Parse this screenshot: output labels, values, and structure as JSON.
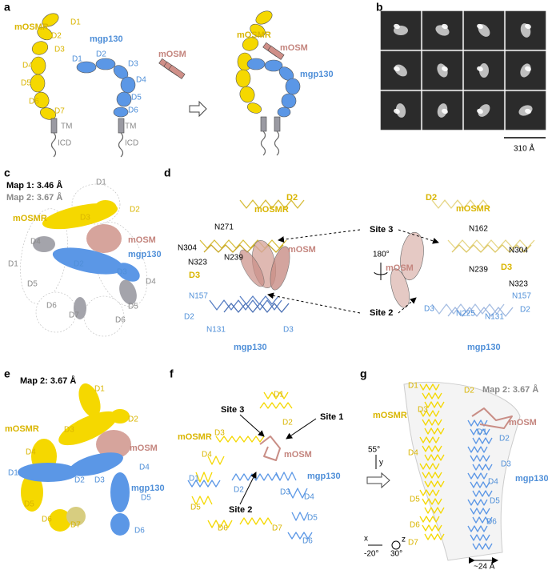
{
  "panels": [
    {
      "letter": "a",
      "labels": [
        "mOSMR",
        "D1",
        "D2",
        "D3",
        "D4",
        "D5",
        "D6",
        "D7",
        "TM",
        "ICD",
        "mgp130",
        "D1",
        "D2",
        "D3",
        "D4",
        "D5",
        "D6",
        "TM",
        "ICD",
        "mOSM",
        "mOSMR",
        "mOSM",
        "mgp130"
      ]
    },
    {
      "letter": "b",
      "labels": [
        "310 Å"
      ]
    },
    {
      "letter": "c",
      "labels": [
        "Map 1: 3.46 Å",
        "Map 2: 3.67 Å",
        "D1",
        "D2",
        "mOSMR",
        "D3",
        "mOSM",
        "D4",
        "D1",
        "mgp130",
        "D2",
        "D3",
        "D4",
        "D5",
        "D5",
        "D6",
        "D7",
        "D6"
      ]
    },
    {
      "letter": "d",
      "labels": [
        "D2",
        "mOSMR",
        "N271",
        "N304",
        "N323",
        "N239",
        "D3",
        "mOSM",
        "N157",
        "D2",
        "N131",
        "D3",
        "mgp130",
        "Site 3",
        "Site 2",
        "180°",
        "D2",
        "mOSMR",
        "N162",
        "N304",
        "mOSM",
        "N239",
        "D3",
        "N323",
        "N157",
        "D3",
        "N225",
        "N131",
        "D2",
        "mgp130"
      ]
    },
    {
      "letter": "e",
      "labels": [
        "Map 2: 3.67 Å",
        "D1",
        "D2",
        "mOSMR",
        "D3",
        "mOSM",
        "D4",
        "D1",
        "D2",
        "D3",
        "D4",
        "mgp130",
        "D5",
        "D5",
        "D6",
        "D7",
        "D6"
      ]
    },
    {
      "letter": "f",
      "labels": [
        "D1",
        "D2",
        "Site 3",
        "Site 1",
        "mOSMR",
        "D3",
        "mOSM",
        "D4",
        "D1",
        "D2",
        "D3",
        "mgp130",
        "D4",
        "Site 2",
        "D5",
        "D5",
        "D6",
        "D7",
        "D6"
      ]
    },
    {
      "letter": "g",
      "labels": [
        "D1",
        "D2",
        "Map 2: 3.67 Å",
        "mOSMR",
        "D3",
        "mOSM",
        "D1",
        "D2",
        "55°",
        "y",
        "D4",
        "D3",
        "D4",
        "mgp130",
        "D5",
        "D5",
        "x",
        "z",
        "-20°",
        "30°",
        "D6",
        "D6",
        "D7",
        "~24 Å"
      ]
    }
  ]
}
